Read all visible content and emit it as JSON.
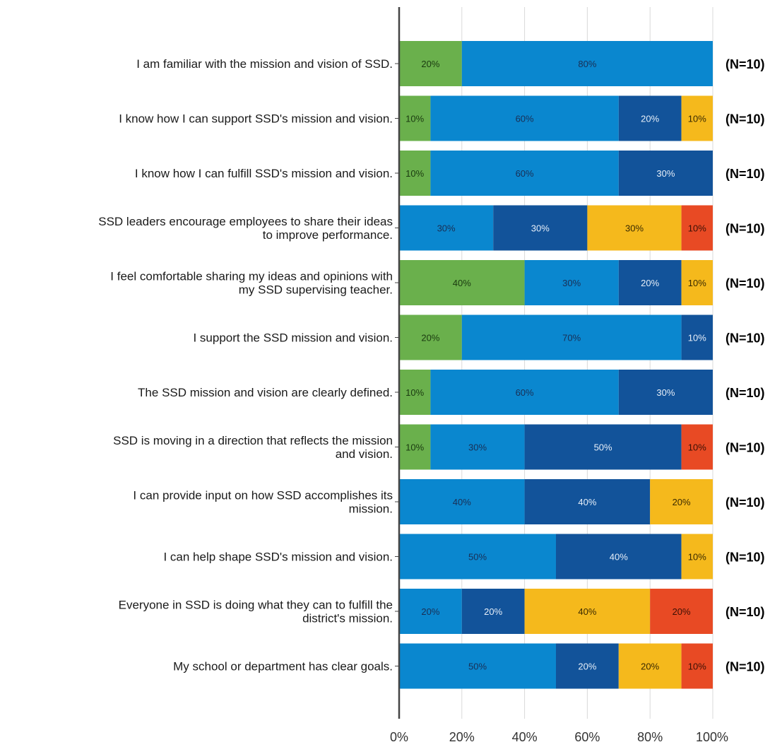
{
  "chart_data": {
    "type": "bar",
    "orientation": "horizontal",
    "stacked": true,
    "title": "",
    "xlabel": "",
    "ylabel": "",
    "xlim": [
      0,
      100
    ],
    "x_ticks": [
      "0%",
      "20%",
      "40%",
      "60%",
      "80%",
      "100%"
    ],
    "grid": true,
    "legend": "none",
    "colors": [
      "#6ab04c",
      "#0a87cf",
      "#12539a",
      "#f5b91c",
      "#e84a24"
    ],
    "label_colors": [
      "#1a3a10",
      "#1a2f55",
      "#e6eef8",
      "#3a2a00",
      "#3a1005"
    ],
    "categories": [
      [
        "I am familiar with the mission and vision of SSD."
      ],
      [
        "I know how I can support SSD's mission and vision."
      ],
      [
        "I know how I can fulfill SSD's mission and vision."
      ],
      [
        "SSD leaders encourage employees to share their ideas",
        "to improve performance."
      ],
      [
        "I feel comfortable sharing my ideas and opinions with",
        "my SSD supervising teacher."
      ],
      [
        "I support the SSD mission and vision."
      ],
      [
        "The SSD mission and vision are clearly defined."
      ],
      [
        "SSD is moving in a direction that reflects the mission",
        "and vision."
      ],
      [
        "I can provide input on how SSD accomplishes its",
        "mission."
      ],
      [
        "I can help shape SSD's mission and vision."
      ],
      [
        "Everyone in SSD is doing what they can to fulfill the",
        "district's mission."
      ],
      [
        "My school or department has clear goals."
      ]
    ],
    "series": [
      {
        "values": [
          20,
          10,
          10,
          0,
          40,
          20,
          10,
          10,
          0,
          0,
          0,
          0
        ]
      },
      {
        "values": [
          80,
          60,
          60,
          30,
          30,
          70,
          60,
          30,
          40,
          50,
          20,
          50
        ]
      },
      {
        "values": [
          0,
          20,
          30,
          30,
          20,
          10,
          30,
          50,
          40,
          40,
          20,
          20
        ]
      },
      {
        "values": [
          0,
          10,
          0,
          30,
          10,
          0,
          0,
          0,
          20,
          10,
          40,
          20
        ]
      },
      {
        "values": [
          0,
          0,
          0,
          10,
          0,
          0,
          0,
          10,
          0,
          0,
          20,
          10
        ]
      }
    ],
    "n_labels": [
      "(N=10)",
      "(N=10)",
      "(N=10)",
      "(N=10)",
      "(N=10)",
      "(N=10)",
      "(N=10)",
      "(N=10)",
      "(N=10)",
      "(N=10)",
      "(N=10)",
      "(N=10)"
    ]
  }
}
